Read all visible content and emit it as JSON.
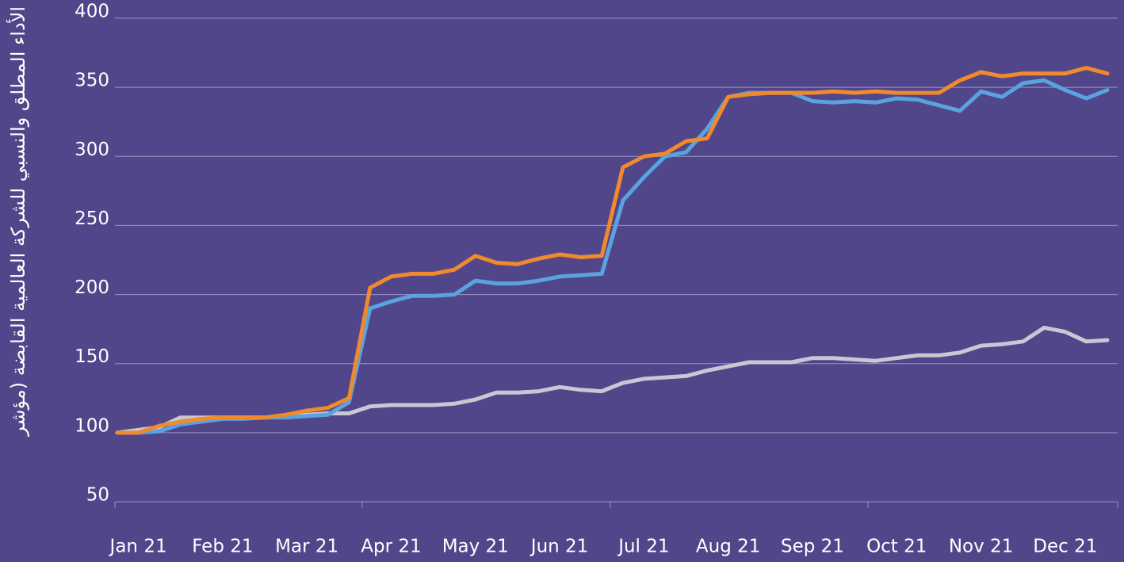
{
  "chart_data": {
    "type": "line",
    "y_label": "الأداء المطلق والنسبي للشركة العالمية القابضة (مؤشر",
    "categories": [
      null,
      "Jan 21",
      null,
      null,
      null,
      "Feb 21",
      null,
      null,
      null,
      "Mar 21",
      null,
      null,
      null,
      "Apr 21",
      null,
      null,
      null,
      "May 21",
      null,
      null,
      null,
      "Jun 21",
      null,
      null,
      null,
      "Jul 21",
      null,
      null,
      null,
      "Aug 21",
      null,
      null,
      null,
      "Sep 21",
      null,
      null,
      null,
      "Oct 21",
      null,
      null,
      null,
      "Nov 21",
      null,
      null,
      null,
      "Dec 21",
      null,
      null
    ],
    "series": [
      {
        "color": "#f08a2c",
        "values": [
          100,
          100,
          105,
          108,
          110,
          111,
          111,
          111,
          113,
          116,
          118,
          125,
          205,
          213,
          215,
          215,
          218,
          228,
          223,
          222,
          226,
          229,
          227,
          228,
          292,
          300,
          302,
          311,
          313,
          343,
          345,
          346,
          346,
          346,
          347,
          346,
          347,
          346,
          346,
          346,
          355,
          361,
          358,
          360,
          360,
          360,
          364,
          360
        ]
      },
      {
        "color": "#5aa3e0",
        "values": [
          100,
          100,
          101,
          106,
          108,
          110,
          110,
          111,
          111,
          112,
          113,
          122,
          190,
          195,
          199,
          199,
          200,
          210,
          208,
          208,
          210,
          213,
          214,
          215,
          268,
          285,
          300,
          303,
          320,
          343,
          346,
          346,
          346,
          340,
          339,
          340,
          339,
          342,
          341,
          337,
          333,
          347,
          343,
          353,
          355,
          348,
          342,
          348
        ]
      },
      {
        "color": "#c8c8d4",
        "values": [
          100,
          102,
          104,
          111,
          111,
          111,
          111,
          111,
          112,
          113,
          114,
          114,
          119,
          120,
          120,
          120,
          121,
          124,
          129,
          129,
          130,
          133,
          131,
          130,
          136,
          139,
          140,
          141,
          145,
          148,
          151,
          151,
          151,
          154,
          154,
          153,
          152,
          154,
          156,
          156,
          158,
          163,
          164,
          166,
          176,
          173,
          166,
          167
        ]
      }
    ],
    "ylim": [
      50,
      400
    ],
    "yticks": [
      50,
      100,
      150,
      200,
      250,
      300,
      350,
      400
    ],
    "grid": true
  }
}
